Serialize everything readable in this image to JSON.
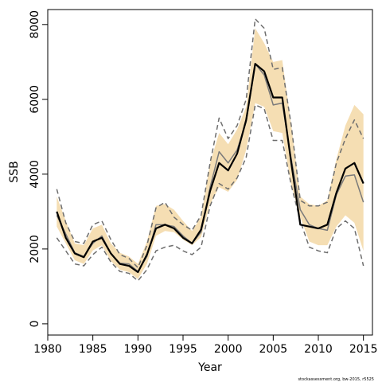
{
  "chart_data": {
    "type": "line",
    "title": "",
    "xlabel": "Year",
    "ylabel": "SSB",
    "xlim": [
      1980,
      2016
    ],
    "ylim": [
      -300,
      8400
    ],
    "xticks": [
      1980,
      1985,
      1990,
      1995,
      2000,
      2005,
      2010,
      2015
    ],
    "yticks": [
      0,
      2000,
      4000,
      6000,
      8000
    ],
    "x": [
      1981,
      1982,
      1983,
      1984,
      1985,
      1986,
      1987,
      1988,
      1989,
      1990,
      1991,
      1992,
      1993,
      1994,
      1995,
      1996,
      1997,
      1998,
      1999,
      2000,
      2001,
      2002,
      2003,
      2004,
      2005,
      2006,
      2007,
      2008,
      2009,
      2010,
      2011,
      2012,
      2013,
      2014,
      2015
    ],
    "series": [
      {
        "style": "band",
        "color": "#f5deb3",
        "lower": [
          2600,
          2150,
          1700,
          1600,
          1960,
          2100,
          1680,
          1450,
          1380,
          1200,
          1600,
          2350,
          2480,
          2450,
          2250,
          2100,
          2320,
          3200,
          3650,
          3530,
          3850,
          4650,
          5900,
          5800,
          5150,
          5100,
          3700,
          2850,
          2200,
          2100,
          2100,
          2600,
          2900,
          2700,
          1950
        ],
        "upper": [
          3400,
          2750,
          2150,
          2100,
          2550,
          2650,
          2150,
          1900,
          1800,
          1600,
          2200,
          3150,
          3200,
          3050,
          2750,
          2480,
          2860,
          4300,
          5100,
          4800,
          5200,
          5800,
          7900,
          7500,
          7000,
          7050,
          5300,
          3400,
          3200,
          3150,
          3300,
          4400,
          5300,
          5850,
          5600
        ]
      },
      {
        "style": "dashed",
        "color": "#6e6e6e",
        "values": [
          3600,
          2700,
          2200,
          2150,
          2650,
          2750,
          2250,
          1850,
          1750,
          1500,
          2100,
          3100,
          3250,
          2850,
          2650,
          2500,
          2900,
          4300,
          5500,
          4950,
          5300,
          6000,
          8150,
          7900,
          6800,
          6850,
          5300,
          3300,
          3150,
          3150,
          3250,
          4300,
          4950,
          5450,
          4950
        ]
      },
      {
        "style": "dashed",
        "color": "#6e6e6e",
        "values": [
          2300,
          1950,
          1600,
          1550,
          1850,
          2050,
          1650,
          1400,
          1350,
          1150,
          1450,
          1950,
          2050,
          2100,
          1950,
          1850,
          2050,
          3150,
          3750,
          3600,
          3900,
          4450,
          5850,
          5750,
          4900,
          4900,
          3700,
          2750,
          2050,
          1950,
          1900,
          2550,
          2750,
          2550,
          1550
        ]
      },
      {
        "style": "solid-thin",
        "color": "#7a7a7a",
        "values": [
          2900,
          2400,
          1900,
          1800,
          2150,
          2350,
          1880,
          1620,
          1600,
          1400,
          1800,
          2650,
          2650,
          2600,
          2350,
          2150,
          2450,
          3650,
          4600,
          4300,
          4650,
          5400,
          6950,
          6650,
          5850,
          5900,
          4400,
          3050,
          2650,
          2550,
          2500,
          3450,
          3950,
          3980,
          3250
        ]
      },
      {
        "style": "solid-thick",
        "color": "#000000",
        "values": [
          3000,
          2300,
          1880,
          1780,
          2200,
          2300,
          1880,
          1600,
          1550,
          1380,
          1850,
          2550,
          2650,
          2550,
          2300,
          2150,
          2520,
          3550,
          4300,
          4100,
          4550,
          5450,
          6950,
          6750,
          6050,
          6050,
          4300,
          2650,
          2600,
          2550,
          2650,
          3500,
          4150,
          4300,
          3750
        ]
      }
    ]
  },
  "footnote": "stockassessment.org, bw-2015, r5525"
}
